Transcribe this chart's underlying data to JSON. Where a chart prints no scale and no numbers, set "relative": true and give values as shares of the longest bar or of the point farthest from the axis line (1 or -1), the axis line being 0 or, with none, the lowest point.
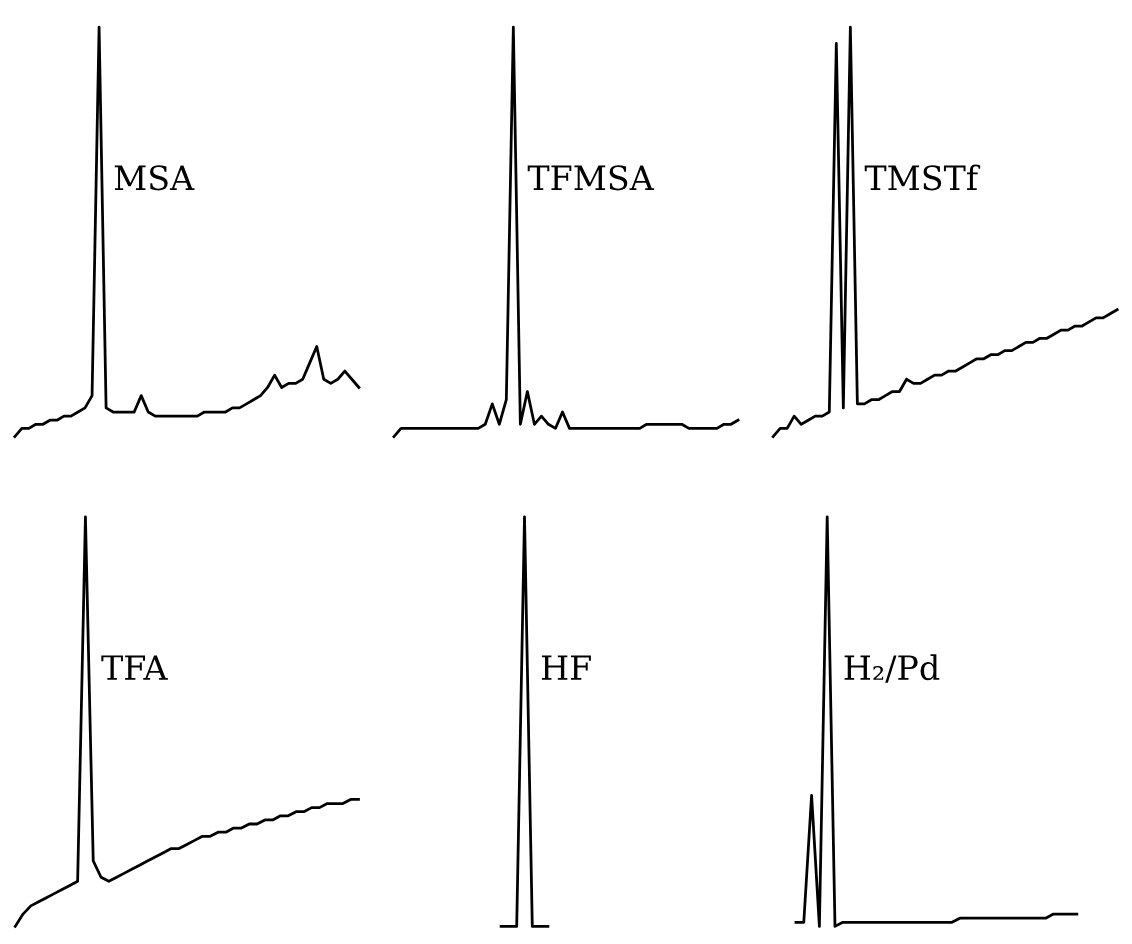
{
  "chart_data": [
    {
      "type": "line",
      "title": "MSA",
      "relative": true,
      "marker": "none",
      "line_style": "solid",
      "categories": [
        null,
        null,
        null,
        null,
        null,
        null,
        null,
        null,
        null,
        null,
        null,
        null,
        null,
        null,
        null,
        null,
        null,
        null,
        null,
        null,
        null,
        null,
        null,
        null,
        null,
        null,
        null,
        null,
        null,
        null,
        null,
        null,
        null,
        null,
        null,
        null,
        null,
        null,
        null,
        null,
        null,
        null,
        null,
        null,
        null,
        null,
        null,
        null,
        null,
        null
      ],
      "series": [
        {
          "color": "#000000",
          "values": [
            0.0,
            0.02,
            0.02,
            0.03,
            0.03,
            0.04,
            0.04,
            0.05,
            0.05,
            0.06,
            0.07,
            0.1,
            1.0,
            0.07,
            0.06,
            0.06,
            0.06,
            0.06,
            0.1,
            0.06,
            0.05,
            0.05,
            0.05,
            0.05,
            0.05,
            0.05,
            0.05,
            0.06,
            0.06,
            0.06,
            0.06,
            0.07,
            0.07,
            0.08,
            0.09,
            0.1,
            0.12,
            0.15,
            0.12,
            0.13,
            0.13,
            0.14,
            0.18,
            0.22,
            0.14,
            0.13,
            0.14,
            0.16,
            0.14,
            0.12
          ]
        }
      ]
    },
    {
      "type": "line",
      "title": "TFMSA",
      "relative": true,
      "marker": "none",
      "line_style": "solid",
      "categories": [
        null,
        null,
        null,
        null,
        null,
        null,
        null,
        null,
        null,
        null,
        null,
        null,
        null,
        null,
        null,
        null,
        null,
        null,
        null,
        null,
        null,
        null,
        null,
        null,
        null,
        null,
        null,
        null,
        null,
        null,
        null,
        null,
        null,
        null,
        null,
        null,
        null,
        null,
        null,
        null,
        null,
        null,
        null,
        null,
        null,
        null,
        null,
        null,
        null,
        null
      ],
      "series": [
        {
          "color": "#000000",
          "values": [
            0.0,
            0.02,
            0.02,
            0.02,
            0.02,
            0.02,
            0.02,
            0.02,
            0.02,
            0.02,
            0.02,
            0.02,
            0.02,
            0.03,
            0.08,
            0.03,
            0.09,
            1.0,
            0.03,
            0.11,
            0.03,
            0.05,
            0.03,
            0.02,
            0.06,
            0.02,
            0.02,
            0.02,
            0.02,
            0.02,
            0.02,
            0.02,
            0.02,
            0.02,
            0.02,
            0.02,
            0.03,
            0.03,
            0.03,
            0.03,
            0.03,
            0.03,
            0.02,
            0.02,
            0.02,
            0.02,
            0.02,
            0.03,
            0.03,
            0.04
          ]
        }
      ]
    },
    {
      "type": "line",
      "title": "TMSTf",
      "relative": true,
      "marker": "none",
      "line_style": "solid",
      "categories": [
        null,
        null,
        null,
        null,
        null,
        null,
        null,
        null,
        null,
        null,
        null,
        null,
        null,
        null,
        null,
        null,
        null,
        null,
        null,
        null,
        null,
        null,
        null,
        null,
        null,
        null,
        null,
        null,
        null,
        null,
        null,
        null,
        null,
        null,
        null,
        null,
        null,
        null,
        null,
        null,
        null,
        null,
        null,
        null,
        null,
        null,
        null,
        null,
        null,
        null
      ],
      "series": [
        {
          "color": "#000000",
          "values": [
            0.0,
            0.02,
            0.02,
            0.05,
            0.03,
            0.04,
            0.05,
            0.05,
            0.06,
            0.96,
            0.07,
            1.0,
            0.08,
            0.08,
            0.09,
            0.09,
            0.1,
            0.11,
            0.11,
            0.14,
            0.13,
            0.13,
            0.14,
            0.15,
            0.15,
            0.16,
            0.16,
            0.17,
            0.18,
            0.19,
            0.19,
            0.2,
            0.2,
            0.21,
            0.21,
            0.22,
            0.23,
            0.23,
            0.24,
            0.24,
            0.25,
            0.26,
            0.26,
            0.27,
            0.27,
            0.28,
            0.29,
            0.29,
            0.3,
            0.31
          ]
        }
      ]
    },
    {
      "type": "line",
      "title": "TFA",
      "relative": true,
      "marker": "none",
      "line_style": "solid",
      "categories": [
        null,
        null,
        null,
        null,
        null,
        null,
        null,
        null,
        null,
        null,
        null,
        null,
        null,
        null,
        null,
        null,
        null,
        null,
        null,
        null,
        null,
        null,
        null,
        null,
        null,
        null,
        null,
        null,
        null,
        null,
        null,
        null,
        null,
        null,
        null,
        null,
        null,
        null,
        null,
        null,
        null,
        null,
        null,
        null,
        null
      ],
      "series": [
        {
          "color": "#000000",
          "values": [
            0.0,
            0.03,
            0.05,
            0.06,
            0.07,
            0.08,
            0.09,
            0.1,
            0.11,
            1.0,
            0.16,
            0.12,
            0.11,
            0.12,
            0.13,
            0.14,
            0.15,
            0.16,
            0.17,
            0.18,
            0.19,
            0.19,
            0.2,
            0.21,
            0.22,
            0.22,
            0.23,
            0.23,
            0.24,
            0.24,
            0.25,
            0.25,
            0.26,
            0.26,
            0.27,
            0.27,
            0.28,
            0.28,
            0.29,
            0.29,
            0.3,
            0.3,
            0.3,
            0.31,
            0.31
          ]
        }
      ]
    },
    {
      "type": "line",
      "title": "HF",
      "relative": true,
      "marker": "none",
      "line_style": "solid",
      "categories": [
        null,
        null,
        null,
        null,
        null,
        null,
        null
      ],
      "series": [
        {
          "color": "#000000",
          "values": [
            0.0,
            0.0,
            0.0,
            1.0,
            0.0,
            0.0,
            0.0
          ]
        }
      ]
    },
    {
      "type": "line",
      "title": "H₂/Pd",
      "relative": true,
      "marker": "none",
      "line_style": "solid",
      "categories": [
        null,
        null,
        null,
        null,
        null,
        null,
        null,
        null,
        null,
        null,
        null,
        null,
        null,
        null,
        null,
        null,
        null,
        null,
        null,
        null,
        null,
        null,
        null,
        null,
        null,
        null,
        null,
        null,
        null,
        null,
        null,
        null,
        null,
        null,
        null,
        null,
        null
      ],
      "series": [
        {
          "color": "#000000",
          "values": [
            0.01,
            0.01,
            0.32,
            0.0,
            1.0,
            0.0,
            0.01,
            0.01,
            0.01,
            0.01,
            0.01,
            0.01,
            0.01,
            0.01,
            0.01,
            0.01,
            0.01,
            0.01,
            0.01,
            0.01,
            0.01,
            0.02,
            0.02,
            0.02,
            0.02,
            0.02,
            0.02,
            0.02,
            0.02,
            0.02,
            0.02,
            0.02,
            0.02,
            0.03,
            0.03,
            0.03,
            0.03
          ]
        }
      ]
    }
  ]
}
